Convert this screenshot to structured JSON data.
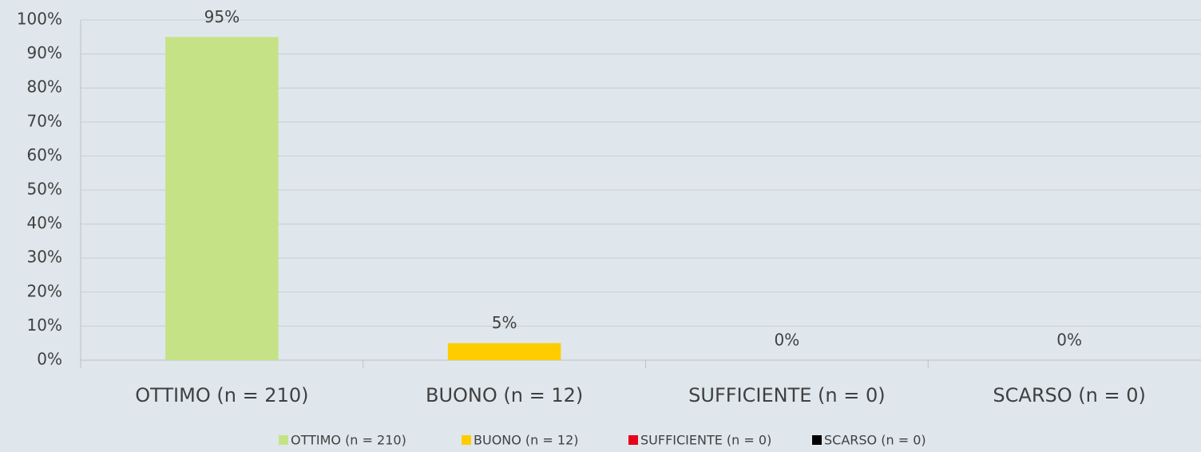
{
  "chart_data": {
    "type": "bar",
    "categories": [
      "OTTIMO (n = 210)",
      "BUONO (n = 12)",
      "SUFFICIENTE (n = 0)",
      "SCARSO (n = 0)"
    ],
    "values": [
      95,
      5,
      0,
      0
    ],
    "value_labels": [
      "95%",
      "5%",
      "0%",
      "0%"
    ],
    "colors": [
      "#c6e286",
      "#ffcc00",
      "#e8001c",
      "#000000"
    ],
    "ylim": [
      0,
      100
    ],
    "yticks": [
      {
        "value": 0,
        "label": "0%"
      },
      {
        "value": 10,
        "label": "10%"
      },
      {
        "value": 20,
        "label": "20%"
      },
      {
        "value": 30,
        "label": "30%"
      },
      {
        "value": 40,
        "label": "40%"
      },
      {
        "value": 50,
        "label": "50%"
      },
      {
        "value": 60,
        "label": "60%"
      },
      {
        "value": 70,
        "label": "70%"
      },
      {
        "value": 80,
        "label": "80%"
      },
      {
        "value": 90,
        "label": "90%"
      },
      {
        "value": 100,
        "label": "100%"
      }
    ],
    "grid": true,
    "legend": "bottom"
  }
}
